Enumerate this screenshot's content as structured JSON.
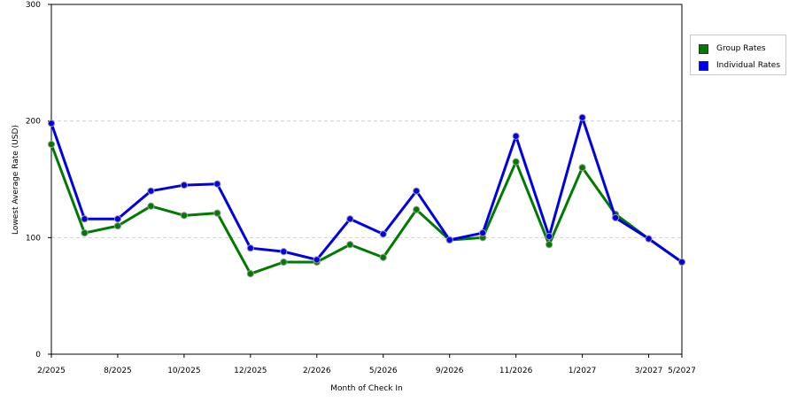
{
  "chart_data": {
    "type": "line",
    "xlabel": "Month of Check In",
    "ylabel": "Lowest Average Rate (USD)",
    "ylim": [
      0,
      300
    ],
    "yticks": [
      0,
      100,
      200,
      300
    ],
    "grid": "horizontal dashed",
    "legend_position": "right",
    "x_tick_labels": [
      "2/2025",
      "8/2025",
      "10/2025",
      "12/2025",
      "2/2026",
      "5/2026",
      "9/2026",
      "11/2026",
      "1/2027",
      "3/2027",
      "5/2027"
    ],
    "x_tick_label_positions": [
      0,
      2,
      4,
      6,
      8,
      10,
      12,
      14,
      16,
      18,
      19
    ],
    "series": [
      {
        "name": "Group Rates",
        "color": "#007a00",
        "values": [
          180,
          104,
          110,
          127,
          119,
          121,
          69,
          79,
          79,
          94,
          83,
          124,
          98,
          100,
          165,
          94,
          160,
          120,
          99,
          79
        ]
      },
      {
        "name": "Individual Rates",
        "color": "#0000e6",
        "values": [
          198,
          116,
          116,
          140,
          145,
          146,
          91,
          88,
          81,
          116,
          103,
          140,
          98,
          104,
          187,
          101,
          203,
          117,
          99,
          79
        ]
      }
    ]
  }
}
